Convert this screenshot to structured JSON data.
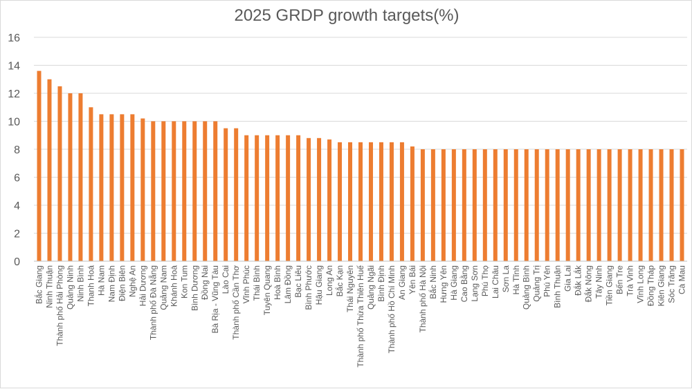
{
  "chart_data": {
    "type": "bar",
    "title": "2025 GRDP growth targets(%)",
    "xlabel": "",
    "ylabel": "",
    "ylim": [
      0,
      16
    ],
    "yticks": [
      0,
      2,
      4,
      6,
      8,
      10,
      12,
      14,
      16
    ],
    "grid": true,
    "legend": "none",
    "bar_color": "#ed7d31",
    "categories": [
      "Bắc Giang",
      "Ninh Thuận",
      "Thành phố Hải Phòng",
      "Quảng Ninh",
      "Ninh Bình",
      "Thanh Hoá",
      "Hà Nam",
      "Nam Định",
      "Điện Biên",
      "Nghệ An",
      "Hải Dương",
      "Thành phố Đà Nẵng",
      "Quảng Nam",
      "Khánh Hoà",
      "Kon Tum",
      "Bình Dương",
      "Đồng Nai",
      "Bà Rịa - Vũng Tàu",
      "Lào Cai",
      "Thành phố Cần Thơ",
      "Vĩnh Phúc",
      "Thái Bình",
      "Tuyên Quang",
      "Hoà Bình",
      "Lâm Đồng",
      "Bạc Liêu",
      "Bình Phước",
      "Hậu Giang",
      "Long An",
      "Bắc Kạn",
      "Thái Nguyên",
      "Thành phố Thừa Thiên Huế",
      "Quảng Ngãi",
      "Bình Định",
      "Thành phố Hồ Chí Minh",
      "An Giang",
      "Yên Bái",
      "Thành phố Hà Nội",
      "Bắc Ninh",
      "Hưng Yên",
      "Hà Giang",
      "Cao Bằng",
      "Lạng Sơn",
      "Phú Thọ",
      "Lai Châu",
      "Sơn La",
      "Hà Tĩnh",
      "Quảng Bình",
      "Quảng Trị",
      "Phú Yên",
      "Bình Thuận",
      "Gia Lai",
      "Đắk Lắk",
      "Đắk Nông",
      "Tây Ninh",
      "Tiền Giang",
      "Bến Tre",
      "Trà Vinh",
      "Vĩnh Long",
      "Đồng Tháp",
      "Kiên Giang",
      "Sóc Trăng",
      "Cà Mau"
    ],
    "values": [
      13.6,
      13.0,
      12.5,
      12.0,
      12.0,
      11.0,
      10.5,
      10.5,
      10.5,
      10.5,
      10.2,
      10.0,
      10.0,
      10.0,
      10.0,
      10.0,
      10.0,
      10.0,
      9.5,
      9.5,
      9.0,
      9.0,
      9.0,
      9.0,
      9.0,
      9.0,
      8.8,
      8.8,
      8.7,
      8.5,
      8.5,
      8.5,
      8.5,
      8.5,
      8.5,
      8.5,
      8.2,
      8.0,
      8.0,
      8.0,
      8.0,
      8.0,
      8.0,
      8.0,
      8.0,
      8.0,
      8.0,
      8.0,
      8.0,
      8.0,
      8.0,
      8.0,
      8.0,
      8.0,
      8.0,
      8.0,
      8.0,
      8.0,
      8.0,
      8.0,
      8.0,
      8.0,
      8.0
    ]
  }
}
